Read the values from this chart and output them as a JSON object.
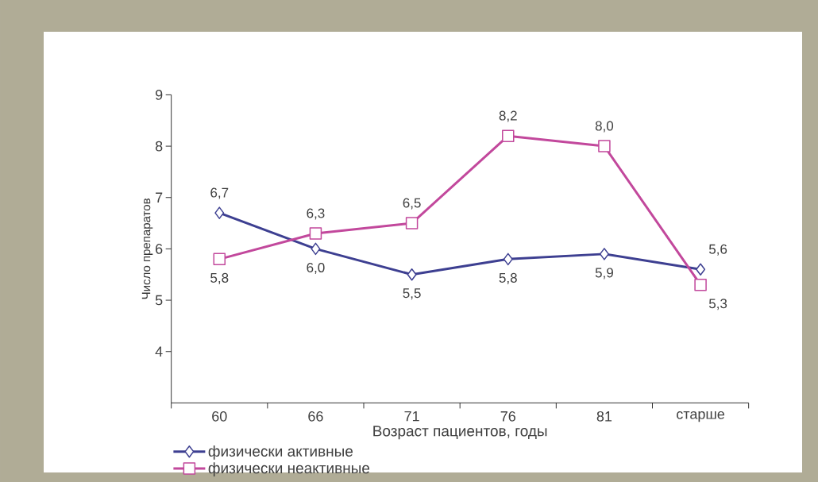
{
  "chart_data": {
    "type": "line",
    "xlabel": "Возраст пациентов, годы",
    "ylabel": "Число препаратов",
    "categories": [
      "60",
      "66",
      "71",
      "76",
      "81",
      "старше"
    ],
    "series": [
      {
        "name": "физически активные",
        "color": "#3d3f91",
        "marker": "diamond",
        "values": [
          6.7,
          6.0,
          5.5,
          5.8,
          5.9,
          5.6
        ],
        "value_labels": [
          "6,7",
          "6,0",
          "5,5",
          "5,8",
          "5,9",
          "5,6"
        ]
      },
      {
        "name": "физически неактивные",
        "color": "#c2489c",
        "marker": "square",
        "values": [
          5.8,
          6.3,
          6.5,
          8.2,
          8.0,
          5.3
        ],
        "value_labels": [
          "5,8",
          "6,3",
          "6,5",
          "8,2",
          "8,0",
          "5,3"
        ]
      }
    ],
    "ylim": [
      3,
      9
    ],
    "yticks": [
      4,
      5,
      6,
      7,
      8,
      9
    ],
    "grid": false,
    "legend": "bottom left",
    "line_style": "solid"
  }
}
